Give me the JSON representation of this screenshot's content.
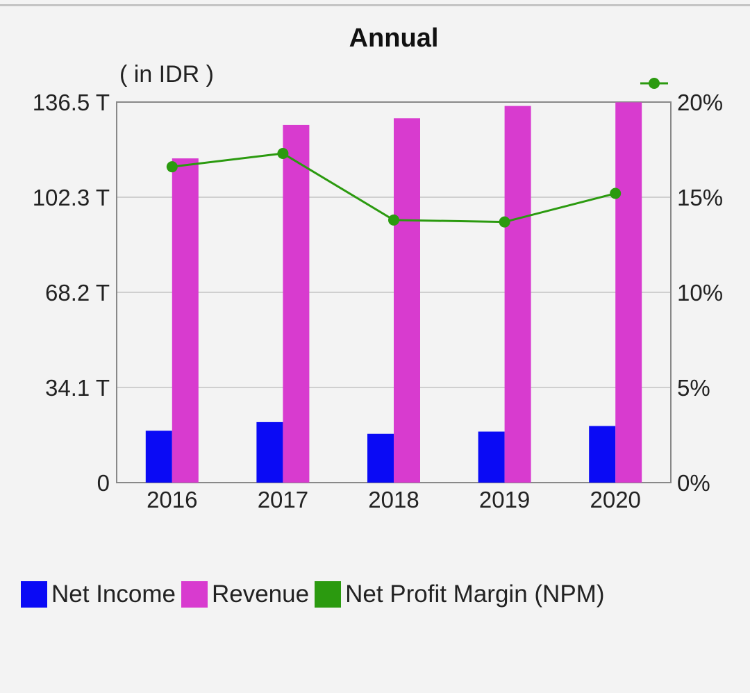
{
  "chart_data": {
    "type": "bar",
    "title": "Annual",
    "unit_label": "( in IDR )",
    "categories": [
      "2016",
      "2017",
      "2018",
      "2019",
      "2020"
    ],
    "series": [
      {
        "name": "Net Income",
        "kind": "bar",
        "axis": "left",
        "color": "#0a0af5",
        "values": [
          18.6,
          21.7,
          17.5,
          18.3,
          20.3
        ]
      },
      {
        "name": "Revenue",
        "kind": "bar",
        "axis": "left",
        "color": "#d83bcf",
        "values": [
          116.3,
          128.3,
          130.7,
          135.1,
          136.4
        ]
      },
      {
        "name": "Net Profit Margin (NPM)",
        "kind": "line",
        "axis": "right",
        "color": "#2b9a0f",
        "values": [
          16.6,
          17.3,
          13.8,
          13.7,
          15.2
        ]
      }
    ],
    "left_axis": {
      "ylim": [
        0,
        136.5
      ],
      "ticks": [
        0,
        34.1,
        68.2,
        102.3,
        136.5
      ],
      "tick_labels": [
        "0",
        "34.1 T",
        "68.2 T",
        "102.3 T",
        "136.5 T"
      ]
    },
    "right_axis": {
      "ylim": [
        0,
        20
      ],
      "tick_labels": [
        "0%",
        "5%",
        "10%",
        "15%",
        "20%"
      ]
    },
    "grid": true,
    "legend_position": "bottom-left"
  }
}
